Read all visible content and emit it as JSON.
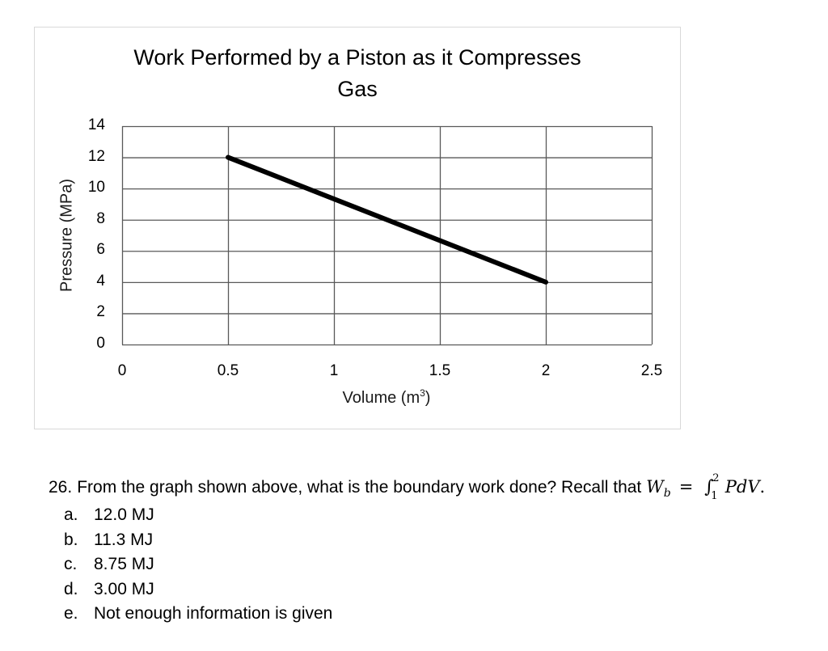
{
  "chart": {
    "title_line1": "Work Performed by a Piston as it Compresses",
    "title_line2": "Gas",
    "y_axis_label": "Pressure (MPa)",
    "x_axis_label_base": "Volume (m",
    "x_axis_label_sup": "3",
    "x_axis_label_close": ")",
    "y_ticks": [
      "0",
      "2",
      "4",
      "6",
      "8",
      "10",
      "12",
      "14"
    ],
    "x_ticks": [
      "0",
      "0.5",
      "1",
      "1.5",
      "2",
      "2.5"
    ],
    "line_color": "#000000",
    "grid_color": "#595959",
    "frame_color": "#d9d9d9"
  },
  "chart_data": {
    "type": "line",
    "title": "Work Performed by a Piston as it Compresses Gas",
    "xlabel": "Volume (m³)",
    "ylabel": "Pressure (MPa)",
    "x": [
      0.5,
      2
    ],
    "series": [
      {
        "name": "Pressure",
        "values": [
          12,
          4
        ]
      }
    ],
    "xlim": [
      0,
      2.5
    ],
    "ylim": [
      0,
      14
    ],
    "x_ticks": [
      0,
      0.5,
      1,
      1.5,
      2,
      2.5
    ],
    "y_ticks": [
      0,
      2,
      4,
      6,
      8,
      10,
      12,
      14
    ],
    "grid": true,
    "legend": "none"
  },
  "question": {
    "number": "26.",
    "text": "From the graph shown above, what is the boundary work done? Recall that",
    "formula": {
      "lhs": "W",
      "lhs_sub": "b",
      "equals": "=",
      "integral": "∫",
      "upper": "2",
      "lower": "1",
      "integrand": "PdV",
      "end": "."
    },
    "options": [
      {
        "letter": "a.",
        "text": "12.0 MJ"
      },
      {
        "letter": "b.",
        "text": "11.3 MJ"
      },
      {
        "letter": "c.",
        "text": "8.75 MJ"
      },
      {
        "letter": "d.",
        "text": "3.00 MJ"
      },
      {
        "letter": "e.",
        "text": "Not enough information is given"
      }
    ]
  }
}
